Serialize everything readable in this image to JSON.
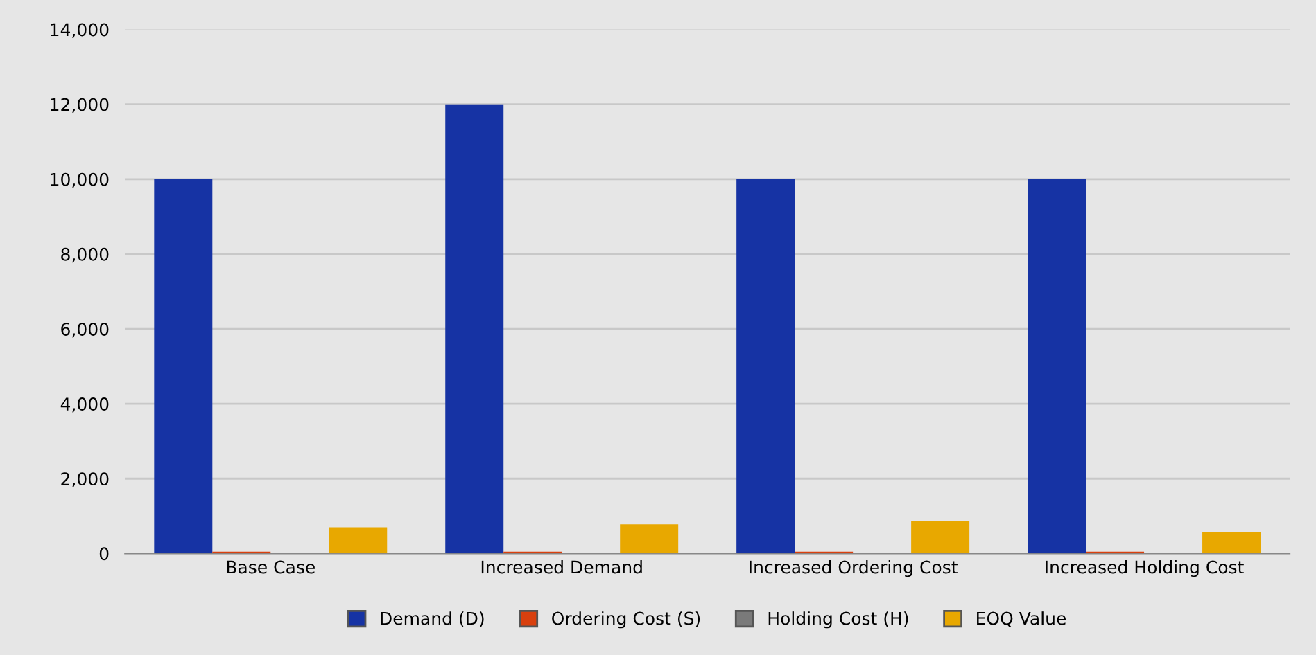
{
  "chart_data": {
    "type": "bar",
    "categories": [
      "Base Case",
      "Increased Demand",
      "Increased Ordering Cost",
      "Increased Holding Cost"
    ],
    "series": [
      {
        "name": "Demand (D)",
        "color": "#1633a4",
        "values": [
          10000,
          12000,
          10000,
          10000
        ]
      },
      {
        "name": "Ordering Cost (S)",
        "color": "#d9400e",
        "values": [
          50,
          50,
          50,
          50
        ]
      },
      {
        "name": "Holding Cost (H)",
        "color": "#7a7a7a",
        "values": [
          0,
          0,
          0,
          0
        ]
      },
      {
        "name": "EOQ Value",
        "color": "#e8a800",
        "values": [
          700,
          780,
          870,
          580
        ]
      }
    ],
    "ylim": [
      0,
      14000
    ],
    "yticks": [
      {
        "value": 0,
        "label": "0"
      },
      {
        "value": 2000,
        "label": "2,000"
      },
      {
        "value": 4000,
        "label": "4,000"
      },
      {
        "value": 6000,
        "label": "6,000"
      },
      {
        "value": 8000,
        "label": "8,000"
      },
      {
        "value": 10000,
        "label": "10,000"
      },
      {
        "value": 12000,
        "label": "12,000"
      },
      {
        "value": 14000,
        "label": "14,000"
      }
    ],
    "grid": "y",
    "legend": "bottom"
  }
}
